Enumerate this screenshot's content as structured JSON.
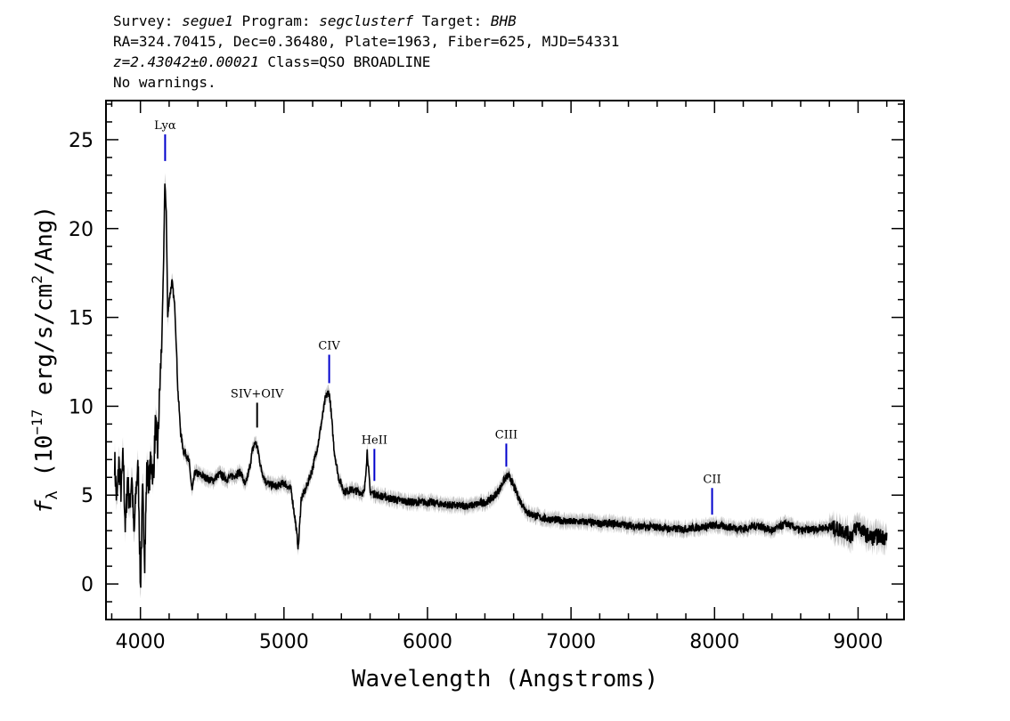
{
  "header": {
    "line1": {
      "survey_label": "Survey: ",
      "survey": "segue1",
      "program_label": " Program: ",
      "program": "segclusterf",
      "target_label": " Target: ",
      "target": "BHB"
    },
    "line2": "RA=324.70415, Dec=0.36480, Plate=1963, Fiber=625, MJD=54331",
    "line3": {
      "z": "z=2.43042±0.00021",
      "class": " Class=QSO BROADLINE"
    },
    "line4": "No warnings."
  },
  "chart_data": {
    "type": "line",
    "xlabel": "Wavelength (Angstroms)",
    "ylabel_parts": {
      "f": "f",
      "sub": "λ",
      "open": " (10",
      "exp": "−17",
      "mid": " erg/s/cm",
      "exp2": "2",
      "close": "/Ang)"
    },
    "xlim": [
      3760,
      9320
    ],
    "ylim": [
      -2,
      27.2
    ],
    "xticks": [
      4000,
      5000,
      6000,
      7000,
      8000,
      9000
    ],
    "yticks": [
      0,
      5,
      10,
      15,
      20,
      25
    ],
    "xtick_labels": [
      "4000",
      "5000",
      "6000",
      "7000",
      "8000",
      "9000"
    ],
    "ytick_labels": [
      "0",
      "5",
      "10",
      "15",
      "20",
      "25"
    ],
    "series": [
      {
        "color": "#000000",
        "error_color": "#bdbdbd",
        "x": [
          3820,
          3835,
          3850,
          3865,
          3880,
          3895,
          3910,
          3925,
          3940,
          3955,
          3970,
          3985,
          4000,
          4015,
          4030,
          4045,
          4060,
          4075,
          4090,
          4105,
          4120,
          4135,
          4150,
          4160,
          4170,
          4180,
          4190,
          4200,
          4210,
          4220,
          4230,
          4240,
          4250,
          4260,
          4270,
          4280,
          4300,
          4320,
          4340,
          4360,
          4380,
          4400,
          4450,
          4500,
          4550,
          4600,
          4650,
          4700,
          4730,
          4760,
          4780,
          4800,
          4820,
          4840,
          4870,
          4900,
          4950,
          5000,
          5050,
          5080,
          5100,
          5120,
          5150,
          5200,
          5240,
          5270,
          5290,
          5310,
          5320,
          5330,
          5350,
          5380,
          5420,
          5470,
          5520,
          5560,
          5580,
          5600,
          5650,
          5700,
          5800,
          5900,
          6000,
          6100,
          6200,
          6300,
          6400,
          6450,
          6500,
          6530,
          6560,
          6580,
          6600,
          6650,
          6700,
          6800,
          6900,
          7000,
          7100,
          7200,
          7300,
          7400,
          7500,
          7600,
          7700,
          7800,
          7900,
          8000,
          8100,
          8200,
          8300,
          8400,
          8500,
          8600,
          8700,
          8800,
          8900,
          8950,
          9000,
          9050,
          9100,
          9150,
          9200
        ],
        "y": [
          7.0,
          4.5,
          6.8,
          5.2,
          7.2,
          3.0,
          6.0,
          4.2,
          6.3,
          2.5,
          5.5,
          6.5,
          -0.3,
          5.2,
          1.5,
          6.5,
          5.8,
          7.0,
          6.0,
          9.0,
          7.5,
          11.0,
          14.0,
          17.5,
          22.5,
          21.0,
          15.0,
          16.0,
          16.5,
          17.0,
          16.3,
          15.5,
          13.5,
          11.0,
          9.8,
          8.5,
          7.5,
          7.3,
          6.8,
          5.2,
          6.3,
          6.2,
          6.0,
          5.8,
          6.2,
          5.9,
          6.1,
          6.3,
          5.5,
          6.5,
          7.5,
          8.0,
          7.5,
          6.5,
          5.8,
          5.6,
          5.5,
          5.7,
          5.3,
          3.5,
          2.0,
          4.8,
          5.3,
          6.5,
          8.0,
          9.5,
          10.5,
          10.8,
          10.5,
          9.5,
          7.5,
          6.0,
          5.2,
          5.3,
          5.2,
          5.1,
          7.5,
          5.2,
          5.0,
          4.9,
          4.7,
          4.6,
          4.6,
          4.5,
          4.4,
          4.4,
          4.6,
          4.8,
          5.3,
          5.8,
          6.1,
          5.9,
          5.5,
          4.6,
          4.0,
          3.7,
          3.6,
          3.5,
          3.5,
          3.4,
          3.4,
          3.3,
          3.2,
          3.2,
          3.1,
          3.1,
          3.2,
          3.3,
          3.2,
          3.1,
          3.3,
          3.0,
          3.4,
          3.0,
          3.1,
          3.2,
          3.0,
          2.7,
          3.3,
          2.8,
          2.6,
          2.7,
          2.6
        ]
      }
    ],
    "lines": [
      {
        "label": "Lyα",
        "x": 4172,
        "y1": 23.8,
        "y2": 25.3,
        "color": "#0000cc"
      },
      {
        "label": "SIV+OIV",
        "x": 4813,
        "y1": 8.8,
        "y2": 10.2,
        "color": "#000000"
      },
      {
        "label": "CIV",
        "x": 5315,
        "y1": 11.3,
        "y2": 12.9,
        "color": "#0000cc"
      },
      {
        "label": "HeII",
        "x": 5630,
        "y1": 5.8,
        "y2": 7.6,
        "color": "#0000cc"
      },
      {
        "label": "CIII",
        "x": 6549,
        "y1": 6.6,
        "y2": 7.9,
        "color": "#0000cc"
      },
      {
        "label": "CII",
        "x": 7983,
        "y1": 3.9,
        "y2": 5.4,
        "color": "#0000cc"
      }
    ]
  }
}
